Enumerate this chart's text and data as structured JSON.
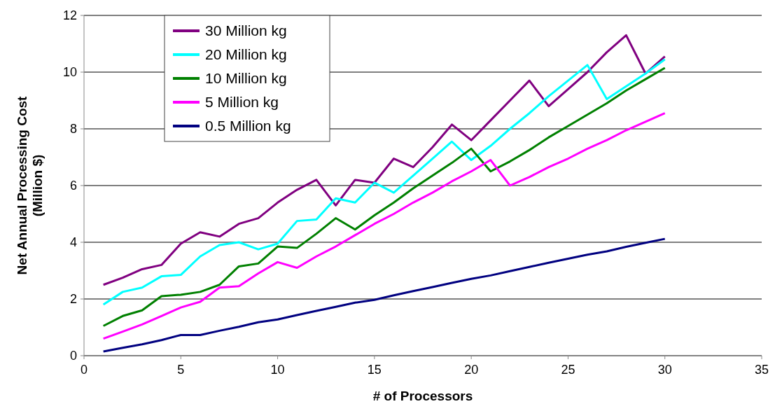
{
  "chart_data": {
    "type": "line",
    "xlabel": "# of Processors",
    "ylabel": "Net Annual Processing Cost (Million $)",
    "x": [
      1,
      2,
      3,
      4,
      5,
      6,
      7,
      8,
      9,
      10,
      11,
      12,
      13,
      14,
      15,
      16,
      17,
      18,
      19,
      20,
      21,
      22,
      23,
      24,
      25,
      26,
      27,
      28,
      29,
      30
    ],
    "xlim": [
      0,
      35
    ],
    "xticks": [
      0,
      5,
      10,
      15,
      20,
      25,
      30,
      35
    ],
    "ylim": [
      0,
      12
    ],
    "yticks": [
      0,
      2,
      4,
      6,
      8,
      10,
      12
    ],
    "grid": "y",
    "legend": "top left",
    "marker": "none",
    "line_style": "solid",
    "series": [
      {
        "name": "30 Million kg",
        "color": "#800080",
        "values": [
          2.5,
          2.75,
          3.05,
          3.2,
          3.95,
          4.35,
          4.2,
          4.65,
          4.85,
          5.4,
          5.85,
          6.2,
          5.3,
          6.2,
          6.1,
          6.95,
          6.65,
          7.35,
          8.15,
          7.6,
          8.3,
          9.0,
          9.7,
          8.8,
          9.4,
          10.0,
          10.7,
          11.3,
          9.95,
          10.55
        ]
      },
      {
        "name": "20 Million kg",
        "color": "#00ffff",
        "values": [
          1.8,
          2.25,
          2.4,
          2.8,
          2.85,
          3.5,
          3.9,
          4.0,
          3.75,
          3.95,
          4.75,
          4.8,
          5.55,
          5.4,
          6.1,
          5.75,
          6.35,
          6.95,
          7.55,
          6.9,
          7.4,
          8.0,
          8.55,
          9.15,
          9.7,
          10.25,
          9.05,
          9.5,
          9.95,
          10.45
        ]
      },
      {
        "name": "10 Million kg",
        "color": "#008000",
        "values": [
          1.05,
          1.4,
          1.6,
          2.1,
          2.15,
          2.25,
          2.5,
          3.15,
          3.25,
          3.85,
          3.8,
          4.3,
          4.85,
          4.45,
          4.95,
          5.4,
          5.9,
          6.35,
          6.8,
          7.3,
          6.5,
          6.85,
          7.25,
          7.7,
          8.1,
          8.5,
          8.9,
          9.35,
          9.75,
          10.15
        ]
      },
      {
        "name": "5 Million kg",
        "color": "#ff00ff",
        "values": [
          0.6,
          0.85,
          1.1,
          1.4,
          1.7,
          1.9,
          2.4,
          2.45,
          2.9,
          3.3,
          3.1,
          3.5,
          3.85,
          4.25,
          4.65,
          5.0,
          5.4,
          5.75,
          6.15,
          6.5,
          6.9,
          6.0,
          6.3,
          6.65,
          6.95,
          7.3,
          7.6,
          7.95,
          8.25,
          8.55
        ]
      },
      {
        "name": "0.5 Million kg",
        "color": "#000080",
        "values": [
          0.15,
          0.28,
          0.4,
          0.55,
          0.73,
          0.73,
          0.88,
          1.02,
          1.18,
          1.28,
          1.43,
          1.58,
          1.72,
          1.87,
          1.97,
          2.13,
          2.28,
          2.42,
          2.57,
          2.71,
          2.83,
          2.98,
          3.13,
          3.28,
          3.42,
          3.56,
          3.68,
          3.84,
          3.98,
          4.12
        ]
      }
    ]
  }
}
